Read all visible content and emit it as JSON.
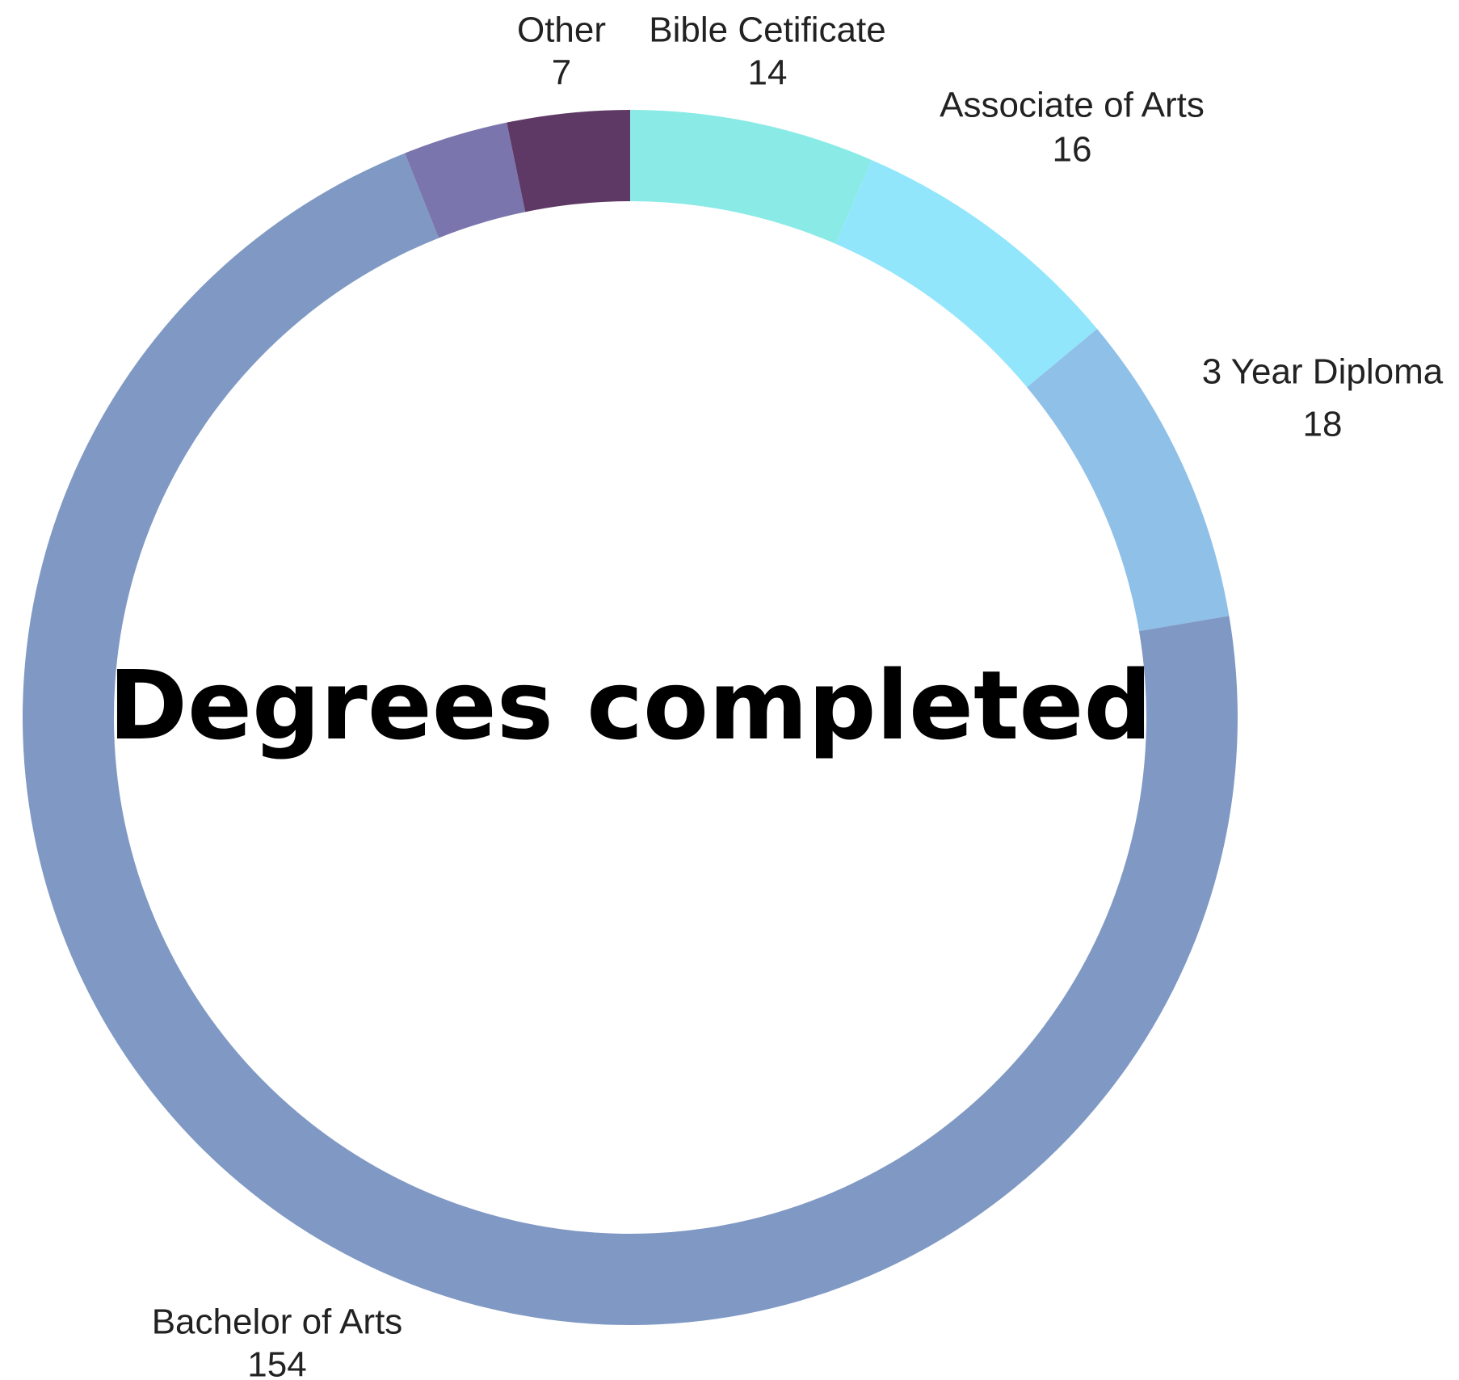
{
  "chart_data": {
    "type": "donut",
    "title": "Degrees completed",
    "categories": [
      "Bible Cetificate",
      "Associate of Arts",
      "3 Year Diploma",
      "Bachelor of Arts",
      null,
      "Other"
    ],
    "values": [
      14,
      16,
      18,
      154,
      6,
      7
    ],
    "colors": [
      "#8aeae6",
      "#92e6fc",
      "#8fc0e8",
      "#8099c4",
      "#7a76ad",
      "#5f3966"
    ]
  }
}
